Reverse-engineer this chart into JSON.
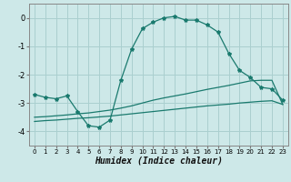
{
  "title": "",
  "xlabel": "Humidex (Indice chaleur)",
  "ylabel": "",
  "xlim": [
    -0.5,
    23.5
  ],
  "ylim": [
    -4.5,
    0.5
  ],
  "yticks": [
    0,
    -1,
    -2,
    -3,
    -4
  ],
  "xticks": [
    0,
    1,
    2,
    3,
    4,
    5,
    6,
    7,
    8,
    9,
    10,
    11,
    12,
    13,
    14,
    15,
    16,
    17,
    18,
    19,
    20,
    21,
    22,
    23
  ],
  "bg_color": "#cde8e8",
  "grid_color": "#aacfcf",
  "line_color": "#1a7a6e",
  "series1": {
    "x": [
      0,
      1,
      2,
      3,
      4,
      5,
      6,
      7,
      8,
      9,
      10,
      11,
      12,
      13,
      14,
      15,
      16,
      17,
      18,
      19,
      20,
      21,
      22,
      23
    ],
    "y": [
      -2.7,
      -2.8,
      -2.85,
      -2.75,
      -3.3,
      -3.8,
      -3.85,
      -3.6,
      -2.2,
      -1.1,
      -0.38,
      -0.15,
      0.0,
      0.05,
      -0.08,
      -0.08,
      -0.25,
      -0.5,
      -1.25,
      -1.85,
      -2.1,
      -2.45,
      -2.5,
      -2.9
    ]
  },
  "series2": {
    "x": [
      0,
      1,
      2,
      3,
      4,
      5,
      6,
      7,
      8,
      9,
      10,
      11,
      12,
      13,
      14,
      15,
      16,
      17,
      18,
      19,
      20,
      21,
      22,
      23
    ],
    "y": [
      -3.5,
      -3.48,
      -3.45,
      -3.42,
      -3.38,
      -3.35,
      -3.3,
      -3.25,
      -3.18,
      -3.1,
      -3.0,
      -2.9,
      -2.82,
      -2.75,
      -2.68,
      -2.6,
      -2.52,
      -2.45,
      -2.38,
      -2.3,
      -2.22,
      -2.2,
      -2.2,
      -3.05
    ]
  },
  "series3": {
    "x": [
      0,
      1,
      2,
      3,
      4,
      5,
      6,
      7,
      8,
      9,
      10,
      11,
      12,
      13,
      14,
      15,
      16,
      17,
      18,
      19,
      20,
      21,
      22,
      23
    ],
    "y": [
      -3.65,
      -3.62,
      -3.6,
      -3.57,
      -3.54,
      -3.52,
      -3.49,
      -3.46,
      -3.42,
      -3.38,
      -3.34,
      -3.3,
      -3.26,
      -3.22,
      -3.18,
      -3.14,
      -3.1,
      -3.07,
      -3.04,
      -3.0,
      -2.97,
      -2.94,
      -2.92,
      -3.05
    ]
  }
}
